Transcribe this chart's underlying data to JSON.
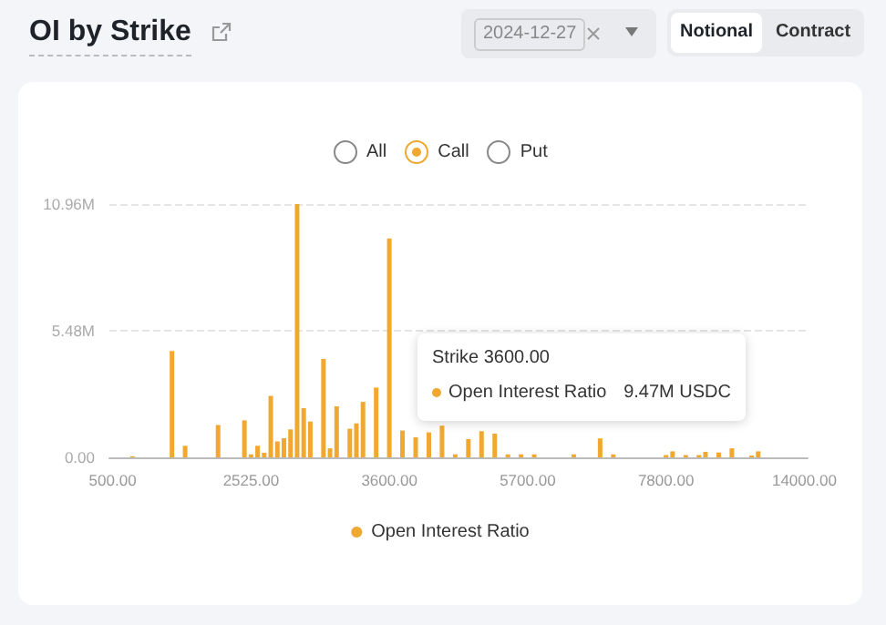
{
  "chart_data": {
    "type": "bar",
    "title": "OI by Strike",
    "annotations": [
      "2024-12-27",
      "Notional",
      "Contract",
      "All",
      "Call",
      "Put",
      "Strike 3600.00",
      "Open Interest Ratio",
      "9.47M USDC"
    ],
    "categories": [
      "500.00",
      null,
      null,
      null,
      null,
      null,
      null,
      null,
      null,
      null,
      null,
      null,
      null,
      null,
      null,
      null,
      null,
      null,
      null,
      null,
      null,
      "2525.00",
      null,
      null,
      null,
      null,
      null,
      null,
      null,
      null,
      null,
      null,
      null,
      null,
      null,
      null,
      null,
      null,
      null,
      null,
      null,
      null,
      "3600.00",
      null,
      null,
      null,
      null,
      null,
      null,
      null,
      null,
      null,
      null,
      null,
      null,
      null,
      null,
      null,
      null,
      null,
      null,
      null,
      null,
      "5700.00",
      null,
      null,
      null,
      null,
      null,
      null,
      null,
      null,
      null,
      null,
      null,
      null,
      null,
      null,
      null,
      null,
      null,
      null,
      null,
      null,
      "7800.00",
      null,
      null,
      null,
      null,
      null,
      null,
      null,
      null,
      null,
      null,
      null,
      null,
      null,
      null,
      null,
      null,
      null,
      null,
      null,
      null,
      "14000.00"
    ],
    "series": [
      {
        "name": "Open Interest Ratio",
        "color": "#f0a830",
        "values": [
          0,
          0,
          0,
          0.05,
          0,
          0,
          0,
          0,
          0,
          4.6,
          0,
          0.5,
          0,
          0,
          0,
          0,
          1.4,
          0,
          0,
          0,
          1.6,
          0.13,
          0.5,
          0.2,
          2.66,
          0.69,
          0.83,
          1.21,
          10.96,
          2.13,
          1.55,
          0,
          4.26,
          0.39,
          2.21,
          0,
          1.24,
          1.47,
          2.4,
          0,
          3.02,
          0,
          9.47,
          0,
          1.16,
          0,
          0.87,
          0,
          1.08,
          0,
          1.37,
          0,
          0.13,
          0,
          0.79,
          0,
          1.13,
          0,
          1.03,
          0,
          0.13,
          0,
          0.13,
          0,
          0.13,
          0,
          0,
          0,
          0,
          0,
          0.13,
          0,
          0,
          0,
          0.82,
          0,
          0.13,
          0,
          0,
          0,
          0,
          0,
          0,
          0,
          0.1,
          0.26,
          0,
          0.1,
          0,
          0.1,
          0.24,
          0,
          0.21,
          0,
          0.39,
          0,
          0,
          0.08,
          0.26,
          0,
          0,
          0,
          0,
          0,
          0,
          0
        ]
      }
    ],
    "ylim": [
      0,
      10.96
    ],
    "yticks": [
      {
        "value": 0,
        "label": "0.00"
      },
      {
        "value": 5.48,
        "label": "5.48M"
      },
      {
        "value": 10.96,
        "label": "10.96M"
      }
    ],
    "grid": "y",
    "legend": "bottom"
  }
}
